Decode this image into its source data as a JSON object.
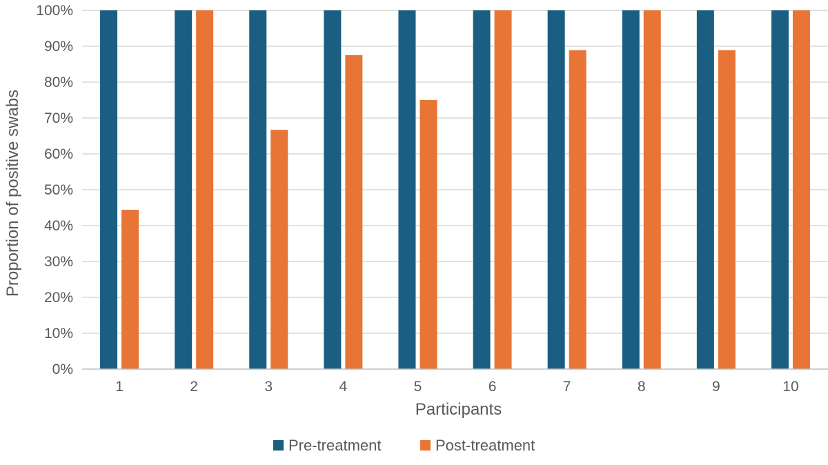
{
  "colors": {
    "pre": "#1a5e82",
    "post": "#e87536",
    "grid": "#d9d9d9",
    "axis": "#bfbfbf",
    "text": "#595959"
  },
  "chart_data": {
    "type": "bar",
    "title": "",
    "xlabel": "Participants",
    "ylabel": "Proportion of positive swabs",
    "categories": [
      "1",
      "2",
      "3",
      "4",
      "5",
      "6",
      "7",
      "8",
      "9",
      "10"
    ],
    "ylim": [
      0,
      100
    ],
    "yticks": [
      "0%",
      "10%",
      "20%",
      "30%",
      "40%",
      "50%",
      "60%",
      "70%",
      "80%",
      "90%",
      "100%"
    ],
    "grid": true,
    "legend_position": "bottom",
    "series": [
      {
        "name": "Pre-treatment",
        "color_key": "pre",
        "values": [
          100,
          100,
          100,
          100,
          100,
          100,
          100,
          100,
          100,
          100
        ]
      },
      {
        "name": "Post-treatment",
        "color_key": "post",
        "values": [
          44.4,
          100,
          66.7,
          87.5,
          75,
          100,
          88.9,
          100,
          88.9,
          100
        ]
      }
    ]
  }
}
